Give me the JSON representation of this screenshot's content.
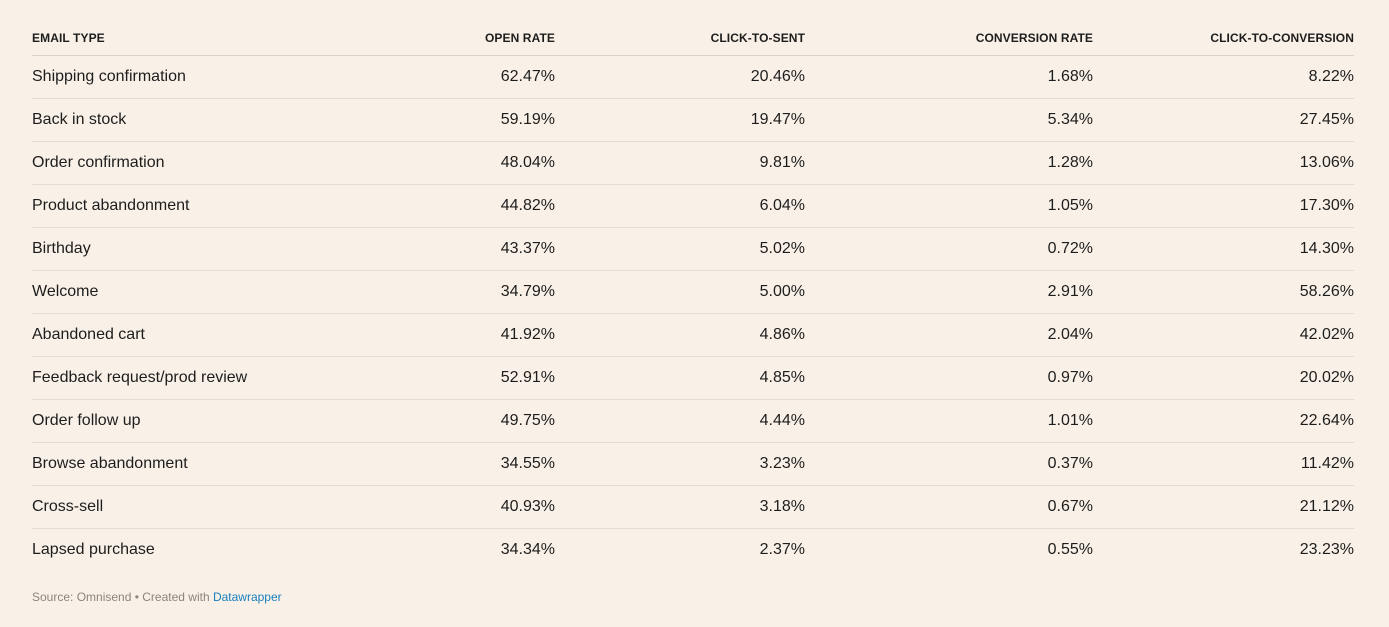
{
  "chart_data": {
    "type": "table",
    "columns": [
      "EMAIL TYPE",
      "OPEN RATE",
      "CLICK-TO-SENT",
      "CONVERSION RATE",
      "CLICK-TO-CONVERSION"
    ],
    "rows": [
      [
        "Shipping confirmation",
        "62.47%",
        "20.46%",
        "1.68%",
        "8.22%"
      ],
      [
        "Back in stock",
        "59.19%",
        "19.47%",
        "5.34%",
        "27.45%"
      ],
      [
        "Order confirmation",
        "48.04%",
        "9.81%",
        "1.28%",
        "13.06%"
      ],
      [
        "Product abandonment",
        "44.82%",
        "6.04%",
        "1.05%",
        "17.30%"
      ],
      [
        "Birthday",
        "43.37%",
        "5.02%",
        "0.72%",
        "14.30%"
      ],
      [
        "Welcome",
        "34.79%",
        "5.00%",
        "2.91%",
        "58.26%"
      ],
      [
        "Abandoned cart",
        "41.92%",
        "4.86%",
        "2.04%",
        "42.02%"
      ],
      [
        "Feedback request/prod review",
        "52.91%",
        "4.85%",
        "0.97%",
        "20.02%"
      ],
      [
        "Order follow up",
        "49.75%",
        "4.44%",
        "1.01%",
        "22.64%"
      ],
      [
        "Browse abandonment",
        "34.55%",
        "3.23%",
        "0.37%",
        "11.42%"
      ],
      [
        "Cross-sell",
        "40.93%",
        "3.18%",
        "0.67%",
        "21.12%"
      ],
      [
        "Lapsed purchase",
        "34.34%",
        "2.37%",
        "0.55%",
        "23.23%"
      ]
    ]
  },
  "footer": {
    "source_text": "Source: Omnisend • Created with ",
    "link_text": "Datawrapper"
  },
  "colors": {
    "background": "#f9f1e7",
    "text": "#1d1d1d",
    "footer_text": "#888580",
    "link": "#1a7fbd"
  }
}
